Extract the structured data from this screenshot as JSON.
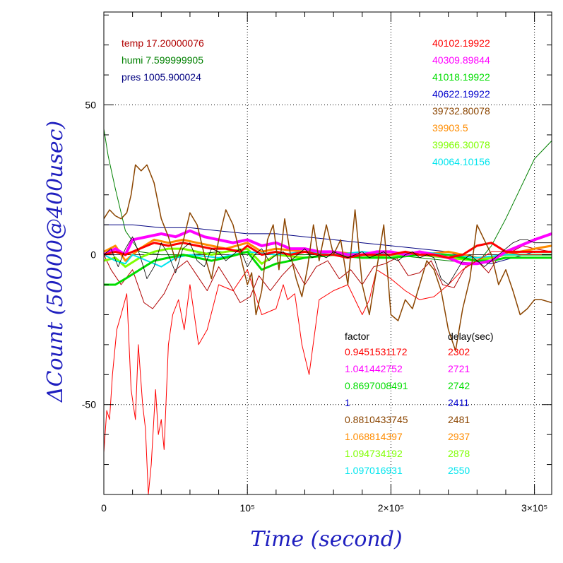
{
  "chart_data": {
    "type": "line",
    "xlabel": "Time (second)",
    "ylabel": "ΔCount (50000@400usec)",
    "xlim": [
      0,
      312000
    ],
    "ylim": [
      -80,
      81
    ],
    "x_ticks": [
      {
        "value": 0,
        "label": "0"
      },
      {
        "value": 100000,
        "label": "10⁵"
      },
      {
        "value": 200000,
        "label": "2×10⁵"
      },
      {
        "value": 300000,
        "label": "3×10⁵"
      }
    ],
    "y_ticks": [
      {
        "value": 50,
        "label": "50"
      },
      {
        "value": 0,
        "label": "0"
      },
      {
        "value": -50,
        "label": "-50"
      }
    ],
    "grid": "dotted at major ticks",
    "env_legend": [
      {
        "text": "temp 17.20000076",
        "color": "#b00000"
      },
      {
        "text": "humi 7.599999905",
        "color": "#008000"
      },
      {
        "text": "pres 1005.900024",
        "color": "#000080"
      }
    ],
    "base_values": [
      {
        "text": "40102.19922",
        "color": "#ff0000"
      },
      {
        "text": "40309.89844",
        "color": "#ff00ff"
      },
      {
        "text": "41018.19922",
        "color": "#00dd00"
      },
      {
        "text": "40622.19922",
        "color": "#0000cc"
      },
      {
        "text": "39732.80078",
        "color": "#8b4500"
      },
      {
        "text": "39903.5",
        "color": "#ff8c00"
      },
      {
        "text": "39966.30078",
        "color": "#7fff00"
      },
      {
        "text": "40064.10156",
        "color": "#00e5ee"
      }
    ],
    "table_headers": {
      "factor": "factor",
      "delay": "delay(sec)"
    },
    "table_rows": [
      {
        "factor": "0.9451531172",
        "delay": "2302",
        "color": "#ff0000"
      },
      {
        "factor": "1.041442752",
        "delay": "2721",
        "color": "#ff00ff"
      },
      {
        "factor": "0.8697008491",
        "delay": "2742",
        "color": "#00dd00"
      },
      {
        "factor": "1",
        "delay": "2411",
        "color": "#0000cc"
      },
      {
        "factor": "0.8810433745",
        "delay": "2481",
        "color": "#8b4500"
      },
      {
        "factor": "1.068814397",
        "delay": "2937",
        "color": "#ff8c00"
      },
      {
        "factor": "1.094734192",
        "delay": "2878",
        "color": "#7fff00"
      },
      {
        "factor": "1.097016931",
        "delay": "2550",
        "color": "#00e5ee"
      }
    ],
    "series": [
      {
        "color": "#008000",
        "width": 1,
        "x": [
          0,
          3000,
          8000,
          15000,
          25000,
          40000,
          60000,
          80000,
          100000,
          120000,
          140000,
          160000,
          180000,
          200000,
          220000,
          240000,
          260000,
          270000,
          280000,
          290000,
          300000,
          312000
        ],
        "y": [
          42,
          33,
          22,
          8,
          1,
          0,
          0,
          1,
          1,
          0,
          0,
          1,
          0,
          0,
          -1,
          -2,
          -3,
          3,
          12,
          22,
          32,
          38
        ]
      },
      {
        "color": "#000080",
        "width": 1,
        "x": [
          0,
          20000,
          40000,
          60000,
          80000,
          100000,
          120000,
          140000,
          160000,
          180000,
          200000,
          220000,
          240000,
          255000,
          270000,
          285000,
          300000,
          312000
        ],
        "y": [
          10,
          10,
          9,
          9,
          8,
          7,
          7,
          6,
          5,
          4,
          3,
          2,
          1,
          -2,
          -3,
          -1,
          1,
          1
        ]
      },
      {
        "color": "#b00000",
        "width": 1,
        "x": [
          0,
          5000,
          12000,
          20000,
          28000,
          34000,
          42000,
          50000,
          58000,
          65000,
          72000,
          80000,
          88000,
          95000,
          102000,
          108000,
          116000,
          124000,
          132000,
          140000,
          148000,
          156000,
          164000,
          172000,
          180000,
          188000,
          196000,
          204000,
          212000,
          220000,
          228000,
          236000,
          244000,
          252000,
          260000,
          268000,
          276000,
          284000,
          292000,
          300000,
          312000
        ],
        "y": [
          0,
          -5,
          -10,
          -5,
          -16,
          -18,
          -13,
          -5,
          -2,
          -7,
          -12,
          -4,
          -10,
          -16,
          -14,
          -7,
          -12,
          -7,
          -3,
          -10,
          -4,
          -2,
          -8,
          -5,
          -10,
          -4,
          -3,
          -1,
          -7,
          -6,
          -2,
          -10,
          -11,
          -4,
          -2,
          -6,
          0,
          1,
          3,
          2,
          1
        ]
      },
      {
        "color": "#ff8c00",
        "width": 3,
        "x": [
          0,
          8000,
          15000,
          25000,
          35000,
          45000,
          55000,
          65000,
          75000,
          85000,
          100000,
          110000,
          120000,
          140000,
          160000,
          180000,
          200000,
          220000,
          240000,
          260000,
          270000,
          280000,
          290000,
          300000,
          312000
        ],
        "y": [
          1,
          3,
          -2,
          2,
          5,
          4,
          5,
          4,
          3,
          2,
          4,
          1,
          2,
          1,
          1,
          0,
          0,
          0,
          1,
          -1,
          -1,
          0,
          1,
          2,
          3
        ]
      },
      {
        "color": "#7fff00",
        "width": 3,
        "x": [
          0,
          8000,
          15000,
          25000,
          35000,
          45000,
          55000,
          65000,
          75000,
          85000,
          100000,
          110000,
          120000,
          140000,
          160000,
          180000,
          200000,
          220000,
          240000,
          260000,
          270000,
          280000,
          290000,
          300000,
          312000
        ],
        "y": [
          -2,
          -1,
          -4,
          -1,
          1,
          2,
          2,
          1,
          0,
          1,
          2,
          -3,
          0,
          -1,
          0,
          -1,
          0,
          0,
          -1,
          -2,
          -1,
          0,
          0,
          0,
          0
        ]
      },
      {
        "color": "#00e5ee",
        "width": 2,
        "x": [
          0,
          8000,
          15000,
          20000,
          30000,
          40000,
          50000,
          60000,
          80000,
          100000,
          120000,
          140000,
          160000,
          180000,
          200000,
          220000,
          240000,
          260000,
          280000,
          300000,
          312000
        ],
        "y": [
          0,
          -2,
          -3,
          0,
          -2,
          -4,
          -1,
          0,
          -1,
          1,
          0,
          1,
          0,
          1,
          0,
          1,
          0,
          -1,
          0,
          0,
          0
        ]
      },
      {
        "color": "#00dd00",
        "width": 3,
        "x": [
          0,
          8000,
          15000,
          25000,
          35000,
          45000,
          55000,
          65000,
          75000,
          85000,
          100000,
          110000,
          120000,
          140000,
          160000,
          180000,
          200000,
          220000,
          240000,
          260000,
          270000,
          280000,
          290000,
          300000,
          312000
        ],
        "y": [
          -10,
          -10,
          -8,
          -5,
          -2,
          -1,
          0,
          -1,
          -2,
          -1,
          1,
          -5,
          -3,
          -1,
          0,
          -1,
          -1,
          0,
          0,
          -2,
          -2,
          -1,
          -1,
          -1,
          -1
        ]
      },
      {
        "color": "#ff00ff",
        "width": 4,
        "x": [
          0,
          8000,
          15000,
          20000,
          30000,
          40000,
          50000,
          60000,
          70000,
          80000,
          90000,
          100000,
          110000,
          120000,
          130000,
          140000,
          150000,
          160000,
          170000,
          180000,
          190000,
          200000,
          210000,
          220000,
          230000,
          240000,
          250000,
          260000,
          270000,
          280000,
          290000,
          300000,
          312000
        ],
        "y": [
          0,
          2,
          0,
          5,
          6,
          7,
          6,
          8,
          6,
          5,
          4,
          5,
          3,
          4,
          2,
          2,
          1,
          1,
          0,
          0,
          1,
          1,
          0,
          1,
          0,
          -1,
          -3,
          -3,
          -2,
          1,
          3,
          5,
          7
        ]
      },
      {
        "color": "#ff0000",
        "width": 3,
        "x": [
          0,
          8000,
          15000,
          25000,
          35000,
          45000,
          55000,
          65000,
          75000,
          85000,
          95000,
          100000,
          110000,
          120000,
          130000,
          140000,
          150000,
          160000,
          170000,
          180000,
          190000,
          200000,
          210000,
          220000,
          230000,
          240000,
          250000,
          260000,
          270000,
          280000,
          290000,
          300000,
          312000
        ],
        "y": [
          0,
          1,
          0,
          2,
          4,
          3,
          4,
          3,
          2,
          2,
          1,
          3,
          0,
          1,
          0,
          1,
          0,
          0,
          -1,
          0,
          0,
          0,
          1,
          0,
          0,
          -1,
          0,
          3,
          4,
          1,
          1,
          1,
          1
        ]
      },
      {
        "color": "#ff0000",
        "width": 1,
        "x": [
          0,
          2000,
          4000,
          6000,
          9000,
          12000,
          16000,
          19000,
          22000,
          24000,
          27000,
          29000,
          31000,
          33000,
          36000,
          38000,
          40000,
          42000,
          45000,
          48000,
          52000,
          56000,
          60000,
          66000,
          72000,
          80000,
          90000,
          100000,
          110000,
          120000,
          125000,
          128000,
          133000,
          138000,
          143000,
          150000,
          160000,
          170000,
          180000,
          185000,
          190000,
          200000,
          210000,
          220000,
          230000,
          240000,
          250000,
          260000,
          270000,
          280000,
          290000,
          312000
        ],
        "y": [
          -66,
          -52,
          -55,
          -40,
          -25,
          -20,
          -13,
          -45,
          -55,
          -30,
          -50,
          -58,
          -80,
          -70,
          -45,
          -60,
          -55,
          -65,
          -30,
          -20,
          -15,
          -25,
          -10,
          -30,
          -25,
          -10,
          -12,
          -5,
          -20,
          -18,
          -10,
          -15,
          -13,
          -30,
          -40,
          -15,
          -12,
          -10,
          -20,
          -15,
          -5,
          -8,
          -12,
          -15,
          -14,
          -10,
          -5,
          -2,
          1,
          1,
          0,
          0
        ]
      },
      {
        "color": "#8b4500",
        "width": 1.5,
        "x": [
          0,
          4000,
          8000,
          12000,
          16000,
          19000,
          22000,
          26000,
          30000,
          35000,
          40000,
          45000,
          50000,
          55000,
          60000,
          65000,
          70000,
          75000,
          80000,
          85000,
          90000,
          95000,
          100000,
          103000,
          106000,
          110000,
          114000,
          118000,
          122000,
          126000,
          130000,
          134000,
          138000,
          142000,
          146000,
          150000,
          155000,
          160000,
          165000,
          170000,
          175000,
          180000,
          185000,
          190000,
          195000,
          200000,
          205000,
          210000,
          215000,
          220000,
          225000,
          230000,
          235000,
          240000,
          245000,
          250000,
          255000,
          260000,
          265000,
          270000,
          275000,
          280000,
          285000,
          290000,
          295000,
          300000,
          305000,
          312000
        ],
        "y": [
          12,
          15,
          13,
          12,
          14,
          20,
          30,
          28,
          30,
          24,
          12,
          6,
          -2,
          4,
          14,
          10,
          0,
          -8,
          5,
          15,
          10,
          0,
          -10,
          -6,
          -20,
          -12,
          5,
          10,
          -5,
          12,
          0,
          -8,
          -14,
          -4,
          10,
          -2,
          10,
          0,
          5,
          -10,
          15,
          -10,
          -20,
          -5,
          10,
          -20,
          -22,
          -15,
          -18,
          -10,
          -2,
          -5,
          -12,
          -25,
          -32,
          -18,
          -8,
          10,
          5,
          0,
          -10,
          -5,
          -12,
          -20,
          -18,
          -15,
          -15,
          -16
        ]
      },
      {
        "color": "#000000",
        "width": 0.8,
        "x": [
          0,
          5000,
          10000,
          15000,
          20000,
          25000,
          30000,
          35000,
          40000,
          45000,
          50000,
          55000,
          60000,
          65000,
          70000,
          75000,
          80000,
          85000,
          90000,
          95000,
          100000,
          105000,
          110000,
          115000,
          120000,
          125000,
          130000,
          135000,
          140000,
          145000,
          150000,
          155000,
          160000,
          165000,
          170000,
          175000,
          180000,
          185000,
          190000,
          195000,
          200000,
          205000,
          210000,
          215000,
          220000,
          225000,
          230000,
          235000,
          240000,
          245000,
          250000,
          255000,
          260000,
          265000,
          270000,
          275000,
          280000,
          285000,
          290000,
          295000,
          300000,
          305000,
          312000
        ],
        "y": [
          0,
          2,
          -4,
          2,
          6,
          0,
          -8,
          -4,
          4,
          0,
          -6,
          2,
          4,
          -2,
          -4,
          2,
          1,
          -2,
          0,
          2,
          -4,
          0,
          2,
          -2,
          0,
          1,
          -2,
          0,
          2,
          -1,
          0,
          -1,
          1,
          0,
          -1,
          0,
          1,
          -1,
          0,
          1,
          -1,
          -2,
          0,
          1,
          -1,
          0,
          -1,
          -8,
          -10,
          -6,
          -2,
          0,
          -2,
          -4,
          -2,
          0,
          2,
          4,
          5,
          5,
          4,
          4,
          4
        ]
      }
    ]
  }
}
